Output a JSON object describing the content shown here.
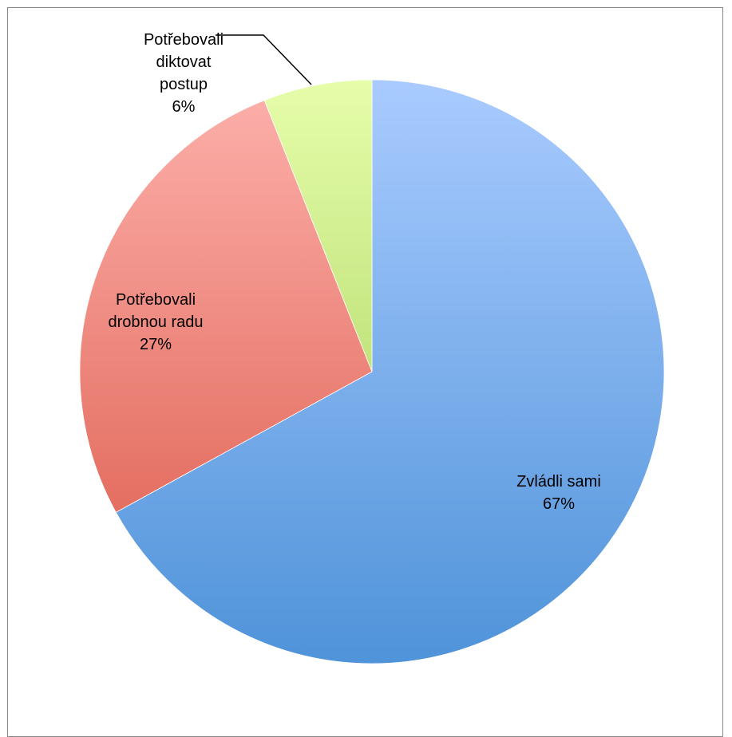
{
  "chart_data": {
    "type": "pie",
    "title": "",
    "slices": [
      {
        "name": "Zvládli sami",
        "value": 67,
        "label_lines": [
          "Zvládli sami",
          "67%"
        ],
        "color_light": "#a9cbff",
        "color_dark": "#4f93d9"
      },
      {
        "name": "Potřebovali drobnou radu",
        "value": 27,
        "label_lines": [
          "Potřebovali",
          "drobnou radu",
          "27%"
        ],
        "color_light": "#fdb1ac",
        "color_dark": "#db5747"
      },
      {
        "name": "Potřebovali diktovat postup",
        "value": 6,
        "label_lines": [
          "Potřebovali",
          "diktovat",
          "postup",
          "6%"
        ],
        "color_light": "#e6fdaa",
        "color_dark": "#9cc94f"
      }
    ],
    "start_angle": "12 o'clock",
    "direction": "clockwise",
    "legend": "none",
    "data_labels": "category name and percentage"
  }
}
